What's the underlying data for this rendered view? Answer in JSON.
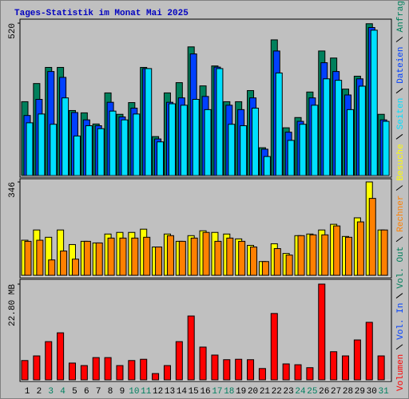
{
  "title": "Tages-Statistik im Monat Mai 2025",
  "chart_data": [
    {
      "type": "bar",
      "ylim": [
        0,
        520
      ],
      "yticks": [
        520
      ],
      "series": [
        {
          "name": "Anfragen",
          "color": "#00805c",
          "values": [
            252,
            314,
            369,
            369,
            222,
            214,
            176,
            282,
            209,
            249,
            369,
            133,
            282,
            317,
            439,
            306,
            374,
            252,
            252,
            290,
            95,
            463,
            163,
            198,
            285,
            425,
            401,
            295,
            339,
            518,
            209
          ]
        },
        {
          "name": "Dateien",
          "color": "#0040ff",
          "values": [
            205,
            260,
            355,
            335,
            215,
            190,
            170,
            250,
            200,
            230,
            365,
            125,
            250,
            265,
            415,
            270,
            370,
            240,
            225,
            265,
            90,
            425,
            148,
            185,
            265,
            385,
            355,
            275,
            330,
            505,
            190
          ]
        },
        {
          "name": "Seiten",
          "color": "#00e0ff",
          "values": [
            180,
            210,
            175,
            265,
            135,
            170,
            160,
            220,
            190,
            210,
            365,
            115,
            245,
            240,
            260,
            225,
            365,
            175,
            170,
            230,
            65,
            350,
            120,
            175,
            240,
            330,
            325,
            225,
            305,
            496,
            185
          ]
        }
      ]
    },
    {
      "type": "bar",
      "ylim": [
        0,
        346
      ],
      "yticks": [
        346
      ],
      "series": [
        {
          "name": "Besuche",
          "color": "#ffff00",
          "values": [
            130,
            168,
            141,
            168,
            114,
            126,
            120,
            153,
            159,
            159,
            171,
            105,
            153,
            126,
            147,
            165,
            159,
            153,
            135,
            111,
            51,
            117,
            81,
            147,
            153,
            168,
            189,
            144,
            213,
            346,
            168
          ]
        },
        {
          "name": "Rechner",
          "color": "#ff8000",
          "values": [
            126,
            130,
            57,
            90,
            60,
            126,
            120,
            138,
            138,
            138,
            141,
            105,
            147,
            126,
            138,
            159,
            126,
            138,
            126,
            105,
            51,
            99,
            75,
            147,
            150,
            150,
            183,
            141,
            198,
            285,
            168
          ]
        }
      ]
    },
    {
      "type": "bar",
      "ylim": [
        0,
        22.8
      ],
      "yticks": [
        {
          "value": 22.8,
          "label": "22.80 MB"
        }
      ],
      "categories": [
        "1",
        "2",
        "3",
        "4",
        "5",
        "6",
        "7",
        "8",
        "9",
        "10",
        "11",
        "12",
        "13",
        "14",
        "15",
        "16",
        "17",
        "18",
        "19",
        "20",
        "21",
        "22",
        "23",
        "24",
        "25",
        "26",
        "27",
        "28",
        "29",
        "30",
        "31"
      ],
      "category_colors": [
        "#000000",
        "#000000",
        "#008060",
        "#008060",
        "#000000",
        "#000000",
        "#000000",
        "#000000",
        "#000000",
        "#008060",
        "#008060",
        "#000000",
        "#000000",
        "#000000",
        "#000000",
        "#000000",
        "#008060",
        "#008060",
        "#000000",
        "#000000",
        "#000000",
        "#000000",
        "#000000",
        "#008060",
        "#008060",
        "#000000",
        "#000000",
        "#000000",
        "#000000",
        "#000000",
        "#008060"
      ],
      "series": [
        {
          "name": "Volumen",
          "color": "#ff0000",
          "values": [
            4.6,
            5.7,
            9.1,
            11.2,
            4.0,
            3.4,
            5.3,
            5.3,
            3.4,
            4.6,
            4.9,
            1.5,
            3.4,
            9.1,
            15.2,
            7.8,
            5.9,
            4.8,
            4.9,
            4.8,
            2.7,
            15.8,
            3.8,
            3.6,
            2.9,
            22.8,
            6.7,
            5.7,
            9.5,
            13.7,
            5.7
          ]
        }
      ],
      "legend_only": [
        {
          "name": "Vol. In",
          "color": "#0040ff"
        },
        {
          "name": "Vol. Out",
          "color": "#00805c"
        }
      ]
    }
  ]
}
